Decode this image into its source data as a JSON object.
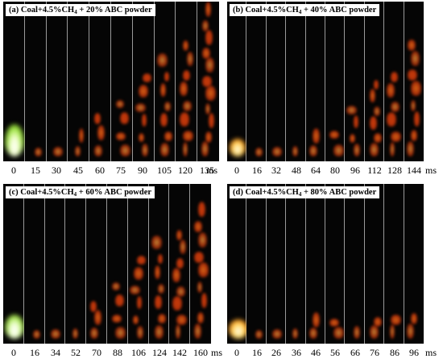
{
  "panels": [
    {
      "id": "a",
      "prefix": "(a) Coal+4.5%CH",
      "sub": "4",
      "suffix": " + 20% ABC powder",
      "times": [
        "0",
        "15",
        "30",
        "45",
        "60",
        "75",
        "90",
        "105",
        "120",
        "135"
      ],
      "unit": "ms"
    },
    {
      "id": "b",
      "prefix": "(b) Coal+4.5%CH",
      "sub": "4",
      "suffix": " + 40% ABC powder",
      "times": [
        "0",
        "16",
        "32",
        "48",
        "64",
        "80",
        "96",
        "112",
        "128",
        "144"
      ],
      "unit": "ms"
    },
    {
      "id": "c",
      "prefix": "(c) Coal+4.5%CH",
      "sub": "4",
      "suffix": " + 60% ABC powder",
      "times": [
        "0",
        "16",
        "34",
        "52",
        "70",
        "88",
        "106",
        "124",
        "142",
        "160"
      ],
      "unit": "ms"
    },
    {
      "id": "d",
      "prefix": "(d) Coal+4.5%CH",
      "sub": "4",
      "suffix": " + 80% ABC powder",
      "times": [
        "0",
        "16",
        "26",
        "36",
        "46",
        "56",
        "66",
        "76",
        "86",
        "96"
      ],
      "unit": "ms"
    }
  ]
}
